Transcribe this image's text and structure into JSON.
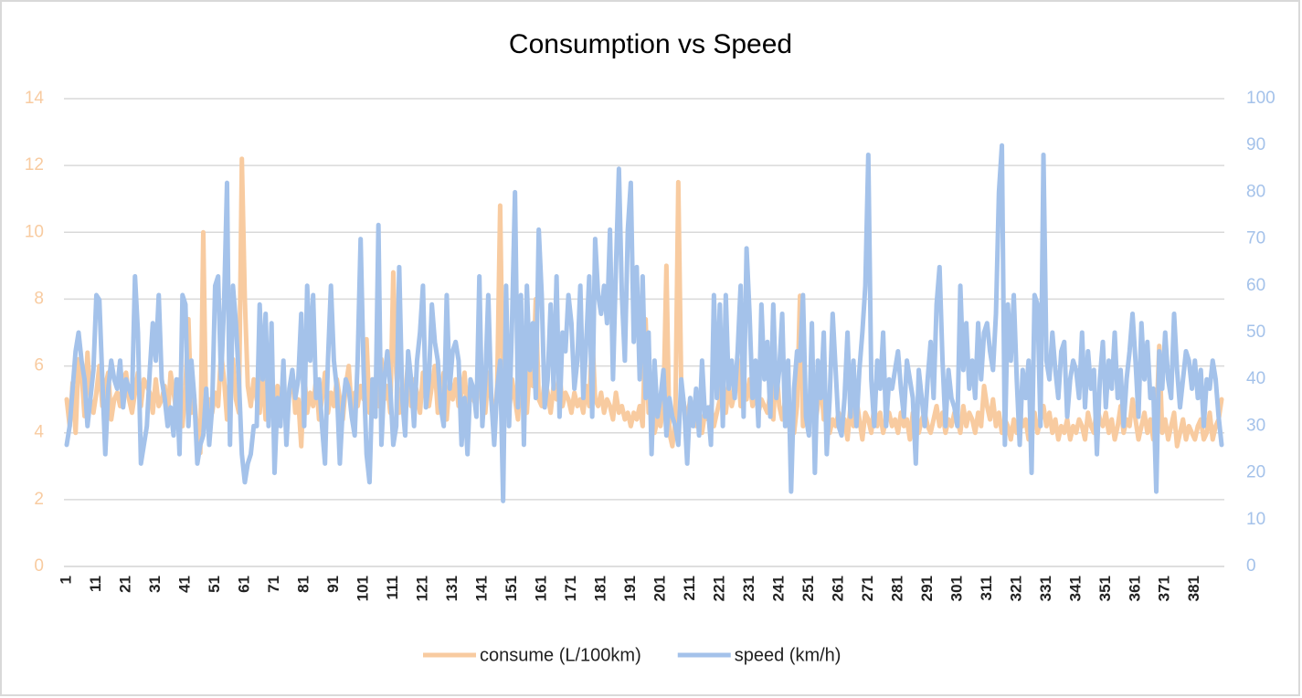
{
  "chart_data": {
    "type": "line",
    "title": "Consumption vs Speed",
    "x": [
      1,
      2,
      3,
      4,
      5,
      6,
      7,
      8,
      9,
      10,
      11,
      12,
      13,
      14,
      15,
      16,
      17,
      18,
      19,
      20,
      21,
      22,
      23,
      24,
      25,
      26,
      27,
      28,
      29,
      30,
      31,
      32,
      33,
      34,
      35,
      36,
      37,
      38,
      39,
      40,
      41,
      42,
      43,
      44,
      45,
      46,
      47,
      48,
      49,
      50,
      51,
      52,
      53,
      54,
      55,
      56,
      57,
      58,
      59,
      60,
      61,
      62,
      63,
      64,
      65,
      66,
      67,
      68,
      69,
      70,
      71,
      72,
      73,
      74,
      75,
      76,
      77,
      78,
      79,
      80,
      81,
      82,
      83,
      84,
      85,
      86,
      87,
      88,
      89,
      90,
      91,
      92,
      93,
      94,
      95,
      96,
      97,
      98,
      99,
      100,
      101,
      102,
      103,
      104,
      105,
      106,
      107,
      108,
      109,
      110,
      111,
      112,
      113,
      114,
      115,
      116,
      117,
      118,
      119,
      120,
      121,
      122,
      123,
      124,
      125,
      126,
      127,
      128,
      129,
      130,
      131,
      132,
      133,
      134,
      135,
      136,
      137,
      138,
      139,
      140,
      141,
      142,
      143,
      144,
      145,
      146,
      147,
      148,
      149,
      150,
      151,
      152,
      153,
      154,
      155,
      156,
      157,
      158,
      159,
      160,
      161,
      162,
      163,
      164,
      165,
      166,
      167,
      168,
      169,
      170,
      171,
      172,
      173,
      174,
      175,
      176,
      177,
      178,
      179,
      180,
      181,
      182,
      183,
      184,
      185,
      186,
      187,
      188,
      189,
      190,
      191,
      192,
      193,
      194,
      195,
      196,
      197,
      198,
      199,
      200,
      201,
      202,
      203,
      204,
      205,
      206,
      207,
      208,
      209,
      210,
      211,
      212,
      213,
      214,
      215,
      216,
      217,
      218,
      219,
      220,
      221,
      222,
      223,
      224,
      225,
      226,
      227,
      228,
      229,
      230,
      231,
      232,
      233,
      234,
      235,
      236,
      237,
      238,
      239,
      240,
      241,
      242,
      243,
      244,
      245,
      246,
      247,
      248,
      249,
      250,
      251,
      252,
      253,
      254,
      255,
      256,
      257,
      258,
      259,
      260,
      261,
      262,
      263,
      264,
      265,
      266,
      267,
      268,
      269,
      270,
      271,
      272,
      273,
      274,
      275,
      276,
      277,
      278,
      279,
      280,
      281,
      282,
      283,
      284,
      285,
      286,
      287,
      288,
      289,
      290,
      291,
      292,
      293,
      294,
      295,
      296,
      297,
      298,
      299,
      300,
      301,
      302,
      303,
      304,
      305,
      306,
      307,
      308,
      309,
      310,
      311,
      312,
      313,
      314,
      315,
      316,
      317,
      318,
      319,
      320,
      321,
      322,
      323,
      324,
      325,
      326,
      327,
      328,
      329,
      330,
      331,
      332,
      333,
      334,
      335,
      336,
      337,
      338,
      339,
      340,
      341,
      342,
      343,
      344,
      345,
      346,
      347,
      348,
      349,
      350,
      351,
      352,
      353,
      354,
      355,
      356,
      357,
      358,
      359,
      360,
      361,
      362,
      363,
      364,
      365,
      366,
      367,
      368,
      369,
      370,
      371,
      372,
      373,
      374,
      375,
      376,
      377,
      378,
      379,
      380,
      381,
      382,
      383,
      384,
      385,
      386,
      387,
      388,
      389,
      390
    ],
    "xlim": [
      1,
      390
    ],
    "xticks": [
      1,
      11,
      21,
      31,
      41,
      51,
      61,
      71,
      81,
      91,
      101,
      111,
      121,
      131,
      141,
      151,
      161,
      171,
      181,
      191,
      201,
      211,
      221,
      231,
      241,
      251,
      261,
      271,
      281,
      291,
      301,
      311,
      321,
      331,
      341,
      351,
      361,
      371,
      381
    ],
    "ylim": [
      0,
      14
    ],
    "yticks": [
      0,
      2,
      4,
      6,
      8,
      10,
      12,
      14
    ],
    "y2lim": [
      0,
      100
    ],
    "y2ticks": [
      0,
      10,
      20,
      30,
      40,
      50,
      60,
      70,
      80,
      90,
      100
    ],
    "grid": true,
    "legend": "bottom",
    "series": [
      {
        "name": "consume (L/100km)",
        "color": "#f8cba0",
        "values": [
          5,
          4.2,
          5.5,
          4,
          6.2,
          5.8,
          4.5,
          6.4,
          5,
          4.6,
          5.2,
          6,
          4.8,
          5.4,
          5.8,
          4.4,
          5,
          5.2,
          4.8,
          5.6,
          5.8,
          5,
          4.6,
          5.2,
          5.8,
          4.8,
          5.6,
          5.4,
          5.2,
          4.6,
          5.6,
          4.8,
          5,
          5.4,
          4.4,
          5.8,
          5.2,
          4.6,
          5.6,
          4.2,
          5.4,
          7.4,
          4.6,
          5,
          4,
          3.4,
          10,
          4.2,
          5,
          4.6,
          5.2,
          4.8,
          6.4,
          5.6,
          4.4,
          5.8,
          6.2,
          5,
          4.6,
          12.2,
          8,
          5.4,
          4.8,
          5.6,
          5,
          4.6,
          5.8,
          4.4,
          6,
          5.2,
          4.6,
          5.4,
          4.8,
          5.6,
          4.4,
          5.2,
          5.8,
          4.6,
          5,
          3.6,
          5.8,
          4.6,
          5.2,
          4.8,
          5.6,
          4.4,
          5,
          5.8,
          4.6,
          5.2,
          4.8,
          5.6,
          5,
          4.4,
          5.4,
          6,
          4.6,
          5.2,
          4.8,
          5.4,
          5,
          6.8,
          4.6,
          5.6,
          5.2,
          4.8,
          6.2,
          5,
          5.4,
          4.6,
          8.8,
          5.8,
          4.6,
          5.4,
          5,
          6.2,
          4.8,
          5.6,
          5.2,
          4.6,
          5.8,
          5,
          4.8,
          5.4,
          6,
          4.6,
          5.2,
          5.8,
          4.4,
          5.6,
          5,
          5.6,
          4.8,
          5.2,
          5.8,
          4.6,
          5.4,
          5,
          4.8,
          5.6,
          5.2,
          4.6,
          5.8,
          5,
          4.4,
          5.4,
          10.8,
          4.8,
          5.2,
          4.6,
          5.6,
          5,
          4.4,
          5.8,
          5.2,
          4.6,
          6,
          5.4,
          8,
          5,
          4.8,
          5.6,
          5.2,
          4.6,
          5.4,
          5,
          5.8,
          4.8,
          5.2,
          5,
          4.6,
          5.2,
          4.8,
          5,
          4.6,
          5.4,
          4.8,
          7,
          5,
          4.8,
          5.2,
          4.6,
          5,
          4.8,
          4.4,
          5.2,
          4.6,
          4.8,
          4.4,
          4.6,
          4.2,
          4.6,
          4.4,
          4.8,
          4.2,
          7.4,
          4.6,
          5.2,
          4,
          4.4,
          4.2,
          4.8,
          9,
          4,
          3.6,
          4.4,
          11.5,
          5.4,
          4.8,
          4.4,
          5,
          4.6,
          4.2,
          4.8,
          4,
          4.6,
          4.4,
          4.8,
          4.2,
          4.6,
          5,
          5.8,
          4.6,
          5.4,
          4.8,
          5.2,
          6.2,
          4.8,
          5.4,
          5,
          5.6,
          4.8,
          5.2,
          4.6,
          5,
          4.8,
          4.6,
          5.2,
          4.4,
          6,
          4.8,
          4.4,
          5,
          4.2,
          4.6,
          4,
          4.8,
          8.1,
          4.2,
          4.6,
          4.4,
          5,
          4.2,
          4.8,
          5.6,
          4.4,
          4.6,
          4,
          4.4,
          4.2,
          4.6,
          4,
          4.4,
          3.8,
          4.8,
          4.2,
          5,
          4.4,
          3.8,
          4.6,
          4.4,
          4,
          4.8,
          4.2,
          4.6,
          4,
          4.4,
          4.6,
          4.2,
          4.4,
          4,
          4.6,
          4.2,
          4.4,
          3.8,
          4.6,
          4.2,
          4,
          4.4,
          4.6,
          4.2,
          4,
          4.4,
          4.8,
          4.2,
          4.6,
          4,
          4.4,
          4.2,
          4.6,
          4.4,
          4,
          4.8,
          4.2,
          4.6,
          4.4,
          4,
          4.6,
          4.2,
          5.4,
          4.8,
          4.4,
          5,
          4.2,
          4.6,
          4,
          4.4,
          4.2,
          3.8,
          4.4,
          4,
          4.6,
          4.2,
          4.4,
          3.8,
          4.2,
          4.6,
          4,
          4.4,
          4.8,
          4.2,
          4.6,
          4,
          4.4,
          3.8,
          4.2,
          4,
          4.4,
          3.8,
          4.2,
          4,
          4.4,
          4.2,
          3.8,
          4.6,
          4.2,
          4,
          4.8,
          4.4,
          4.2,
          4.6,
          4,
          4.4,
          3.8,
          4.2,
          4.8,
          4,
          4.4,
          4.2,
          5,
          4.4,
          3.8,
          4.2,
          4.6,
          4,
          4.4,
          3.8,
          4.2,
          6.6,
          4,
          4.4,
          3.8,
          4.2,
          4.6,
          3.6,
          4,
          4.4,
          3.8,
          4.2,
          4,
          3.8,
          4.2,
          4.4,
          3.8,
          4,
          4.6,
          3.8,
          4.2,
          4.4,
          5
        ]
      },
      {
        "name": "speed (km/h)",
        "color": "#a4c2ea",
        "axis": "y2",
        "values": [
          26,
          30,
          38,
          46,
          50,
          44,
          40,
          30,
          36,
          42,
          58,
          57,
          40,
          24,
          38,
          44,
          40,
          38,
          44,
          34,
          40,
          38,
          36,
          62,
          50,
          22,
          26,
          30,
          42,
          52,
          44,
          58,
          40,
          36,
          30,
          34,
          28,
          40,
          24,
          58,
          56,
          30,
          44,
          36,
          22,
          26,
          28,
          38,
          26,
          34,
          60,
          62,
          40,
          56,
          82,
          26,
          60,
          52,
          40,
          24,
          18,
          22,
          24,
          30,
          30,
          56,
          40,
          54,
          30,
          52,
          20,
          36,
          30,
          44,
          26,
          38,
          42,
          36,
          40,
          54,
          30,
          60,
          44,
          58,
          36,
          40,
          30,
          22,
          44,
          60,
          44,
          38,
          22,
          34,
          40,
          38,
          32,
          28,
          44,
          70,
          42,
          24,
          18,
          40,
          32,
          73,
          26,
          40,
          46,
          38,
          26,
          30,
          64,
          36,
          28,
          46,
          40,
          30,
          44,
          50,
          60,
          34,
          40,
          56,
          48,
          44,
          34,
          30,
          58,
          38,
          46,
          48,
          44,
          26,
          36,
          24,
          40,
          38,
          32,
          62,
          30,
          40,
          58,
          36,
          26,
          38,
          44,
          14,
          60,
          30,
          52,
          80,
          34,
          58,
          26,
          60,
          42,
          52,
          36,
          72,
          58,
          34,
          40,
          56,
          38,
          62,
          32,
          50,
          46,
          58,
          52,
          38,
          44,
          60,
          36,
          48,
          62,
          32,
          70,
          58,
          54,
          60,
          52,
          72,
          40,
          64,
          85,
          58,
          44,
          72,
          82,
          48,
          64,
          40,
          62,
          36,
          50,
          24,
          44,
          32,
          36,
          42,
          28,
          36,
          32,
          30,
          26,
          40,
          34,
          22,
          36,
          30,
          38,
          28,
          44,
          32,
          34,
          26,
          58,
          36,
          56,
          30,
          58,
          38,
          44,
          36,
          46,
          60,
          32,
          68,
          54,
          36,
          44,
          30,
          56,
          40,
          48,
          32,
          56,
          36,
          42,
          54,
          30,
          44,
          16,
          38,
          46,
          44,
          58,
          32,
          28,
          52,
          20,
          44,
          36,
          50,
          24,
          36,
          54,
          42,
          30,
          28,
          36,
          50,
          32,
          44,
          30,
          42,
          50,
          60,
          88,
          40,
          30,
          44,
          38,
          50,
          30,
          40,
          38,
          42,
          46,
          38,
          32,
          44,
          40,
          36,
          22,
          42,
          36,
          30,
          40,
          48,
          36,
          56,
          64,
          44,
          30,
          42,
          36,
          34,
          30,
          60,
          42,
          52,
          38,
          44,
          36,
          52,
          40,
          50,
          52,
          46,
          42,
          54,
          80,
          90,
          26,
          56,
          44,
          58,
          40,
          26,
          42,
          36,
          44,
          20,
          58,
          56,
          30,
          88,
          44,
          40,
          50,
          42,
          36,
          46,
          48,
          32,
          40,
          44,
          42,
          36,
          50,
          34,
          46,
          38,
          42,
          24,
          40,
          48,
          34,
          44,
          38,
          50,
          36,
          42,
          30,
          40,
          46,
          54,
          44,
          32,
          52,
          40,
          48,
          36,
          38,
          16,
          46,
          38,
          50,
          40,
          36,
          54,
          42,
          34,
          40,
          46,
          44,
          38,
          44,
          36,
          42,
          30,
          40,
          38,
          44,
          40,
          32,
          26
        ]
      }
    ]
  }
}
